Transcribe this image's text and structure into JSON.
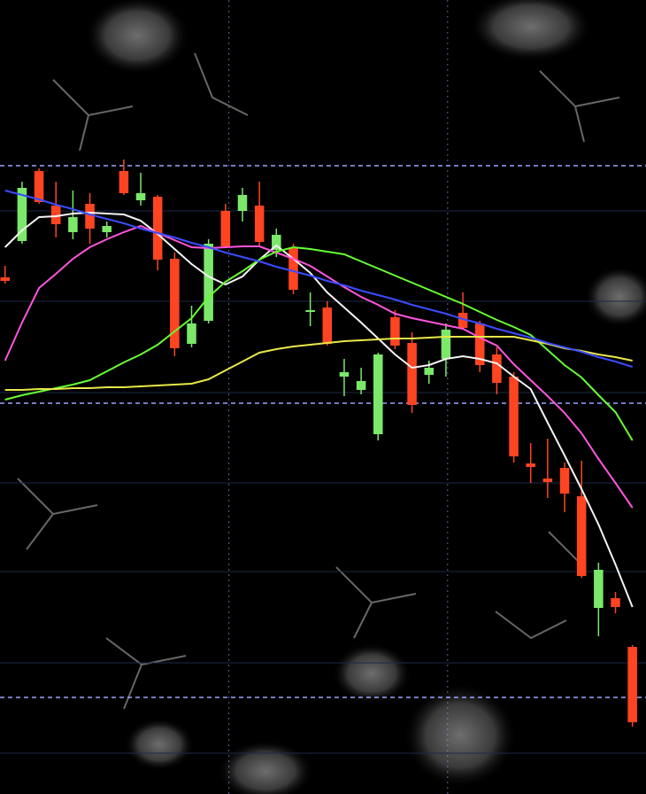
{
  "chart_data": {
    "type": "candlestick",
    "xlim": [
      -0.3,
      37.8
    ],
    "ylim": [
      0,
      89.6
    ],
    "yticks": [
      4.6,
      14.8,
      25.1,
      35.1,
      45.3,
      55.6,
      65.8
    ],
    "xticks": [
      13.2,
      26.1
    ],
    "levels": [
      70.9,
      44.1,
      10.9
    ],
    "grid": true,
    "up_color": "#7be86a",
    "down_color": "#ff4422",
    "level_color": "#9aa6ff",
    "grid_color": "#1c2a44",
    "open": [
      58.3,
      62.4,
      70.3,
      66.4,
      63.4,
      66.6,
      63.4,
      70.3,
      67.0,
      67.4,
      60.4,
      50.8,
      53.4,
      65.8,
      65.8,
      66.4,
      61.4,
      61.6,
      54.4,
      54.9,
      47.1,
      45.6,
      40.6,
      53.8,
      50.9,
      47.3,
      49.1,
      54.3,
      53.1,
      49.6,
      47.1,
      37.3,
      35.6,
      36.8,
      33.6,
      21.0,
      22.1,
      16.6
    ],
    "high": [
      59.6,
      69.1,
      70.6,
      69.1,
      68.1,
      67.8,
      64.6,
      71.6,
      70.1,
      67.6,
      61.1,
      55.1,
      62.6,
      66.6,
      68.4,
      69.1,
      63.8,
      62.1,
      56.6,
      55.6,
      49.1,
      48.1,
      49.8,
      54.6,
      52.1,
      48.9,
      53.1,
      56.6,
      53.4,
      50.4,
      47.6,
      39.6,
      40.1,
      37.4,
      37.6,
      26.1,
      22.8,
      16.8
    ],
    "low": [
      57.6,
      62.1,
      66.6,
      62.8,
      62.6,
      62.1,
      62.8,
      67.6,
      66.4,
      59.1,
      49.4,
      50.4,
      53.1,
      61.6,
      64.6,
      61.8,
      60.6,
      56.4,
      52.8,
      50.6,
      44.9,
      45.1,
      39.9,
      50.2,
      43.0,
      46.3,
      47.1,
      52.4,
      47.6,
      45.1,
      37.4,
      35.1,
      33.4,
      31.8,
      24.4,
      17.8,
      20.4,
      7.6
    ],
    "close": [
      57.9,
      68.4,
      66.8,
      64.3,
      65.1,
      63.8,
      64.1,
      67.8,
      67.8,
      60.3,
      50.3,
      53.1,
      62.1,
      61.8,
      67.6,
      62.3,
      63.1,
      56.9,
      54.6,
      50.8,
      47.6,
      46.6,
      49.6,
      50.6,
      43.9,
      48.1,
      52.4,
      52.6,
      48.4,
      46.4,
      38.1,
      36.9,
      35.2,
      33.9,
      24.6,
      25.3,
      21.1,
      8.1
    ],
    "series": [
      {
        "color": "#f4f4f4",
        "values": [
          61.7,
          63.6,
          65.1,
          65.2,
          65.5,
          65.6,
          65.5,
          65.4,
          64.7,
          63.2,
          61.5,
          59.8,
          58.4,
          57.5,
          58.4,
          60.3,
          61.9,
          60.4,
          58.8,
          56.6,
          54.9,
          53.2,
          51.4,
          49.6,
          48.1,
          48.4,
          49.1,
          49.4,
          49.1,
          48.6,
          47.1,
          45.7,
          41.9,
          38.2,
          34.4,
          30.4,
          25.9,
          21.1
        ]
      },
      {
        "color": "#ff55dd",
        "values": [
          48.9,
          53.2,
          57.1,
          58.7,
          60.4,
          61.7,
          62.6,
          63.4,
          64.1,
          63.3,
          62.5,
          61.7,
          61.6,
          61.7,
          61.8,
          61.8,
          61.1,
          60.4,
          59.6,
          58.4,
          57.2,
          56.1,
          55.2,
          54.2,
          53.7,
          53.3,
          52.9,
          52.5,
          51.5,
          50.6,
          48.5,
          46.7,
          44.9,
          43.0,
          40.7,
          37.8,
          35.1,
          32.3
        ]
      },
      {
        "color": "#66ff33",
        "values": [
          44.5,
          45.0,
          45.4,
          45.8,
          46.2,
          46.7,
          47.7,
          48.7,
          49.6,
          50.7,
          52.2,
          53.7,
          56.1,
          57.8,
          59.0,
          60.3,
          61.2,
          61.7,
          61.5,
          61.2,
          60.9,
          60.1,
          59.3,
          58.5,
          57.7,
          56.9,
          56.1,
          55.3,
          54.4,
          53.5,
          52.7,
          51.8,
          50.1,
          48.4,
          47.0,
          45.0,
          43.1,
          39.9
        ]
      },
      {
        "color": "#e8e84a",
        "values": [
          45.6,
          45.6,
          45.7,
          45.7,
          45.8,
          45.8,
          45.9,
          45.9,
          46.0,
          46.1,
          46.2,
          46.3,
          46.8,
          47.8,
          48.8,
          49.8,
          50.2,
          50.5,
          50.7,
          50.9,
          51.1,
          51.2,
          51.3,
          51.4,
          51.4,
          51.5,
          51.6,
          51.6,
          51.6,
          51.6,
          51.6,
          51.2,
          50.8,
          50.3,
          50.0,
          49.6,
          49.3,
          48.9
        ]
      },
      {
        "color": "#3a4cff",
        "values": [
          68.1,
          67.6,
          67.1,
          66.5,
          66.0,
          65.4,
          64.9,
          64.4,
          63.8,
          63.3,
          62.8,
          62.2,
          61.7,
          61.1,
          60.6,
          60.1,
          59.5,
          59.0,
          58.5,
          57.9,
          57.4,
          56.8,
          56.3,
          55.8,
          55.2,
          54.7,
          54.2,
          53.6,
          53.1,
          52.5,
          52.0,
          51.5,
          50.9,
          50.4,
          49.9,
          49.3,
          48.8,
          48.2
        ]
      }
    ]
  }
}
